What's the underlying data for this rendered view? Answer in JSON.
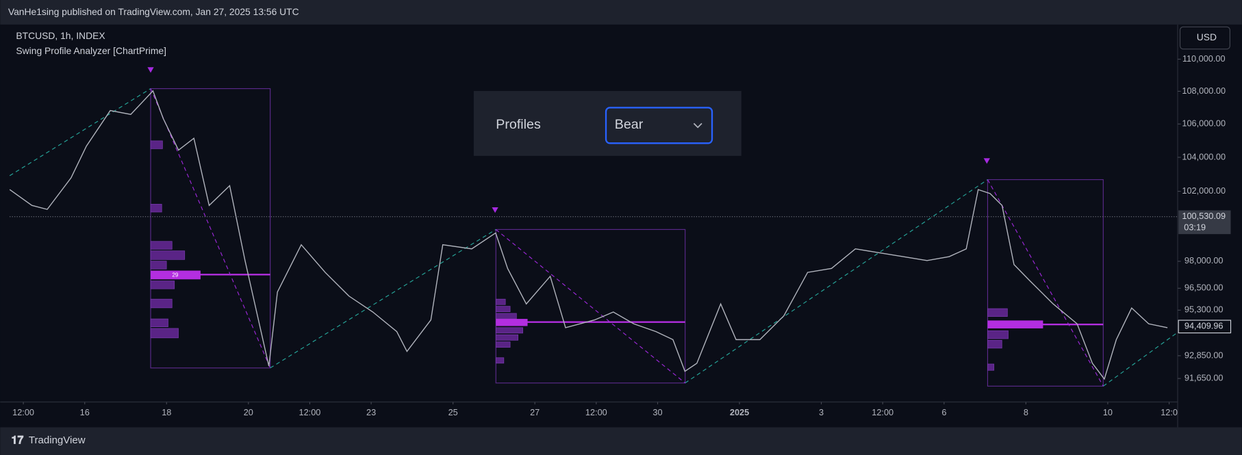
{
  "header": {
    "published": "VanHe1sing published on TradingView.com, Jan 27, 2025 13:56 UTC",
    "brand": "TradingView"
  },
  "chart_data": {
    "type": "line",
    "title": "BTCUSD, 1h, INDEX",
    "subtitle": "Swing Profile Analyzer [ChartPrime]",
    "currency": "USD",
    "log_scale": true,
    "grid": false,
    "color": "#b2b5be",
    "x": [
      0,
      13,
      22,
      36,
      45,
      59,
      71,
      84,
      90,
      99,
      108,
      117,
      129,
      138,
      152,
      157,
      171,
      185,
      199,
      213,
      227,
      233,
      247,
      254,
      271,
      285,
      292,
      303,
      317,
      326,
      343,
      354,
      366,
      379,
      389,
      396,
      403,
      417,
      426,
      440,
      454,
      468,
      482,
      496,
      510,
      524,
      538,
      551,
      561,
      568,
      575,
      582,
      589,
      598,
      612,
      626,
      635,
      642,
      649,
      658,
      668,
      679
    ],
    "values": [
      102100,
      101180,
      100950,
      102790,
      104670,
      106820,
      106580,
      108030,
      106340,
      104430,
      105140,
      101180,
      102330,
      98040,
      92300,
      96290,
      98930,
      97380,
      96070,
      95200,
      94140,
      93080,
      94770,
      98930,
      98700,
      99600,
      97600,
      95640,
      97160,
      94350,
      94770,
      95200,
      94560,
      94140,
      93710,
      92030,
      92450,
      95640,
      93710,
      93710,
      94990,
      97380,
      97600,
      98700,
      98480,
      98260,
      98040,
      98260,
      98700,
      102100,
      101870,
      101180,
      97820,
      96940,
      95640,
      94560,
      92450,
      91620,
      93710,
      95420,
      94560,
      94350
    ],
    "xlim": [
      0,
      685
    ],
    "xticks": [
      {
        "value": 8,
        "label": "12:00"
      },
      {
        "value": 44,
        "label": "16"
      },
      {
        "value": 92,
        "label": "18"
      },
      {
        "value": 140,
        "label": "20"
      },
      {
        "value": 176,
        "label": "12:00"
      },
      {
        "value": 212,
        "label": "23"
      },
      {
        "value": 260,
        "label": "25"
      },
      {
        "value": 308,
        "label": "27"
      },
      {
        "value": 344,
        "label": "12:00"
      },
      {
        "value": 380,
        "label": "30"
      },
      {
        "value": 428,
        "label": "2025"
      },
      {
        "value": 476,
        "label": "3"
      },
      {
        "value": 512,
        "label": "12:00"
      },
      {
        "value": 548,
        "label": "6"
      },
      {
        "value": 596,
        "label": "8"
      },
      {
        "value": 644,
        "label": "10"
      },
      {
        "value": 680,
        "label": "12:0"
      }
    ],
    "ylim": [
      90550,
      112100
    ],
    "yticks": [
      {
        "value": 110000,
        "label": "110,000.00"
      },
      {
        "value": 108000,
        "label": "108,000.00"
      },
      {
        "value": 106000,
        "label": "106,000.00"
      },
      {
        "value": 104000,
        "label": "104,000.00"
      },
      {
        "value": 102000,
        "label": "102,000.00"
      },
      {
        "value": 98000,
        "label": "98,000.00"
      },
      {
        "value": 96500,
        "label": "96,500.00"
      },
      {
        "value": 95300,
        "label": "95,300.00"
      },
      {
        "value": 92850,
        "label": "92,850.00"
      },
      {
        "value": 91650,
        "label": "91,650.00"
      }
    ],
    "last_price": {
      "value": 100530.09,
      "label": "100,530.09"
    },
    "countdown": "03:19",
    "marker_price": {
      "value": 94409.96,
      "label": "94,409.96"
    },
    "annotations": [
      "29"
    ]
  },
  "settings": {
    "label": "Profiles",
    "selected": "Bear"
  }
}
